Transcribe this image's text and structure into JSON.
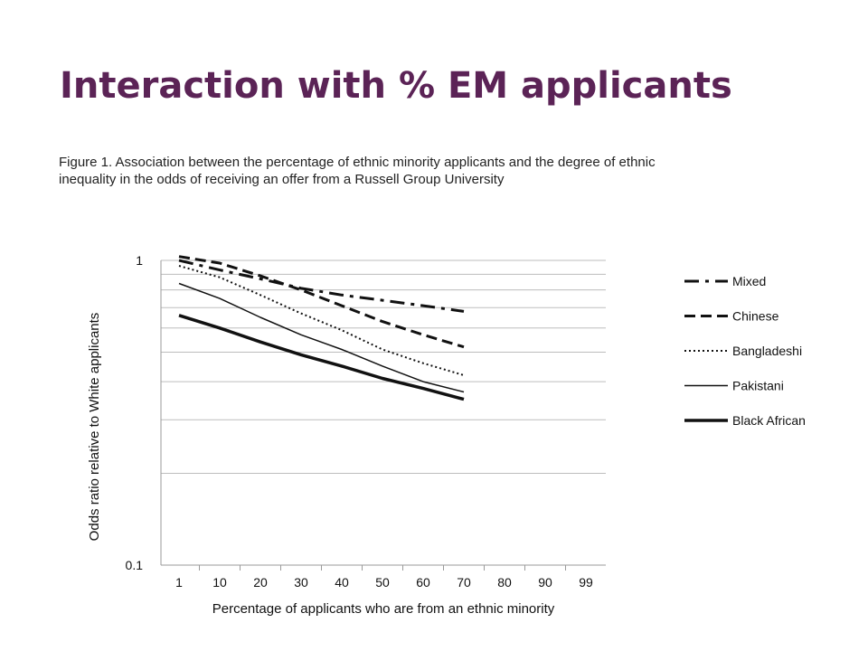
{
  "slide": {
    "title": "Interaction with % EM applicants"
  },
  "figure": {
    "caption_line1": "Figure 1. Association between the percentage of ethnic minority applicants and the degree of ethnic",
    "caption_line2": "inequality in the odds of receiving an offer from a Russell Group University"
  },
  "chart_data": {
    "type": "line",
    "xlabel": "Percentage of applicants who are from an ethnic minority",
    "ylabel": "Odds ratio relative to White applicants",
    "x_categories": [
      "1",
      "10",
      "20",
      "30",
      "40",
      "50",
      "60",
      "70",
      "80",
      "90",
      "99"
    ],
    "y_scale": "log",
    "ylim": [
      0.1,
      1
    ],
    "y_ticks": [
      {
        "value": 1,
        "label": "1"
      },
      {
        "value": 0.1,
        "label": "0.1"
      }
    ],
    "y_gridlines": [
      1,
      0.9,
      0.8,
      0.7,
      0.6,
      0.5,
      0.4,
      0.3,
      0.2
    ],
    "grid": true,
    "legend_position": "right",
    "series": [
      {
        "name": "Mixed",
        "style": "dashdot",
        "width": 3,
        "x": [
          "1",
          "10",
          "20",
          "30",
          "40",
          "50",
          "60",
          "70"
        ],
        "values": [
          1.0,
          0.93,
          0.87,
          0.81,
          0.77,
          0.74,
          0.71,
          0.68
        ]
      },
      {
        "name": "Chinese",
        "style": "dashed",
        "width": 3,
        "x": [
          "1",
          "10",
          "20",
          "30",
          "40",
          "50",
          "60",
          "70"
        ],
        "values": [
          1.03,
          0.98,
          0.89,
          0.8,
          0.71,
          0.63,
          0.57,
          0.52
        ]
      },
      {
        "name": "Bangladeshi",
        "style": "dotted",
        "width": 2,
        "x": [
          "1",
          "10",
          "20",
          "30",
          "40",
          "50",
          "60",
          "70"
        ],
        "values": [
          0.96,
          0.88,
          0.77,
          0.67,
          0.59,
          0.51,
          0.46,
          0.42
        ]
      },
      {
        "name": "Pakistani",
        "style": "solid",
        "width": 1.5,
        "x": [
          "1",
          "10",
          "20",
          "30",
          "40",
          "50",
          "60",
          "70"
        ],
        "values": [
          0.84,
          0.75,
          0.65,
          0.57,
          0.51,
          0.45,
          0.4,
          0.37
        ]
      },
      {
        "name": "Black African",
        "style": "solid",
        "width": 3.5,
        "x": [
          "1",
          "10",
          "20",
          "30",
          "40",
          "50",
          "60",
          "70"
        ],
        "values": [
          0.66,
          0.6,
          0.54,
          0.49,
          0.45,
          0.41,
          0.38,
          0.35
        ]
      }
    ]
  }
}
